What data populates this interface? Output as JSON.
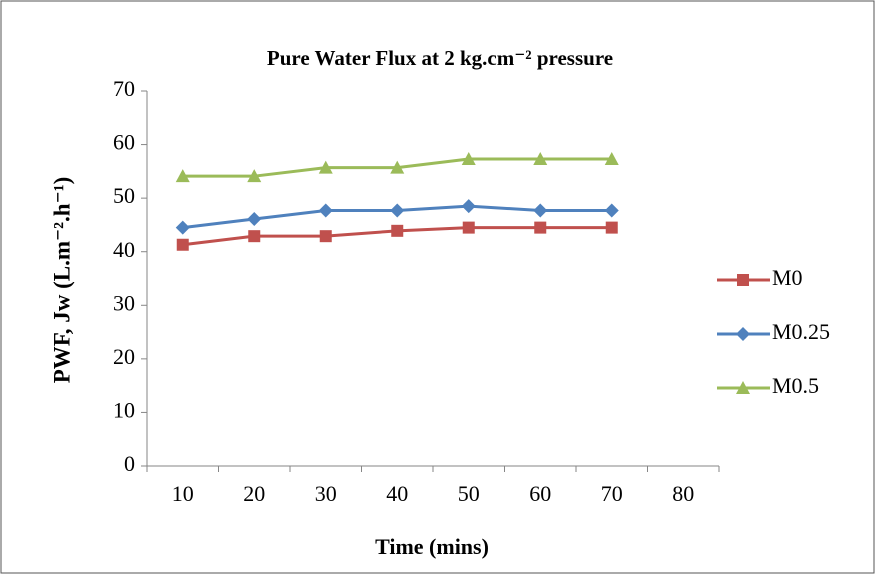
{
  "chart_data": {
    "type": "line",
    "title": "Pure Water Flux at 2 kg.cm⁻² pressure",
    "x_label": "Time (mins)",
    "y_label": "PWF, Jᴡ (L.m⁻².h⁻¹)",
    "categories": [
      "10",
      "20",
      "30",
      "40",
      "50",
      "60",
      "70",
      "80"
    ],
    "series": [
      {
        "name": "M0",
        "color": "#c0504d",
        "marker": "square",
        "values": [
          41.3,
          42.9,
          42.9,
          43.9,
          44.5,
          44.5,
          44.5,
          null
        ]
      },
      {
        "name": "M0.25",
        "color": "#4f81bd",
        "marker": "diamond",
        "values": [
          44.5,
          46.1,
          47.7,
          47.7,
          48.5,
          47.7,
          47.7,
          null
        ]
      },
      {
        "name": "M0.5",
        "color": "#9bbb59",
        "marker": "triangle",
        "values": [
          54.1,
          54.1,
          55.7,
          55.7,
          57.3,
          57.3,
          57.3,
          null
        ]
      }
    ],
    "ylim": [
      0,
      70
    ],
    "yticks": [
      0,
      10,
      20,
      30,
      40,
      50,
      60,
      70
    ],
    "legend": "right",
    "grid": false
  }
}
